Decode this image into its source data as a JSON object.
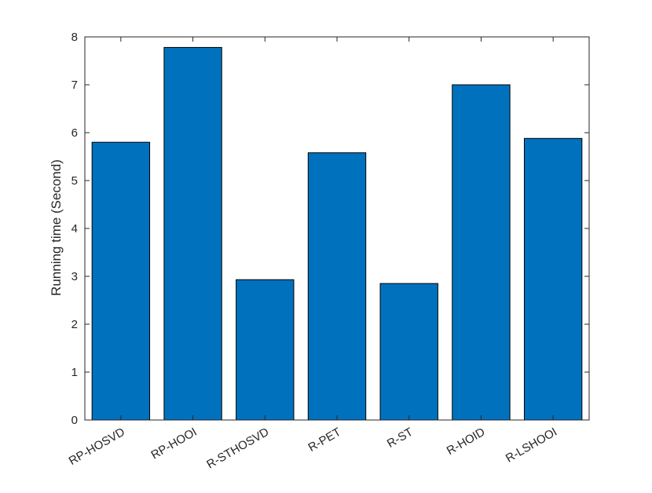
{
  "chart_data": {
    "type": "bar",
    "title": "",
    "xlabel": "",
    "ylabel": "Running time (Second)",
    "categories": [
      "RP-HOSVD",
      "RP-HOOI",
      "R-STHOSVD",
      "R-PET",
      "R-ST",
      "R-HOID",
      "R-LSHOOI"
    ],
    "values": [
      5.8,
      7.78,
      2.93,
      5.58,
      2.85,
      7.0,
      5.88
    ],
    "ylim": [
      0,
      8
    ],
    "yticks": [
      0,
      1,
      2,
      3,
      4,
      5,
      6,
      7,
      8
    ],
    "grid": false,
    "legend": "none",
    "bar_color": "#0072BD",
    "edge_color": "#000000"
  }
}
